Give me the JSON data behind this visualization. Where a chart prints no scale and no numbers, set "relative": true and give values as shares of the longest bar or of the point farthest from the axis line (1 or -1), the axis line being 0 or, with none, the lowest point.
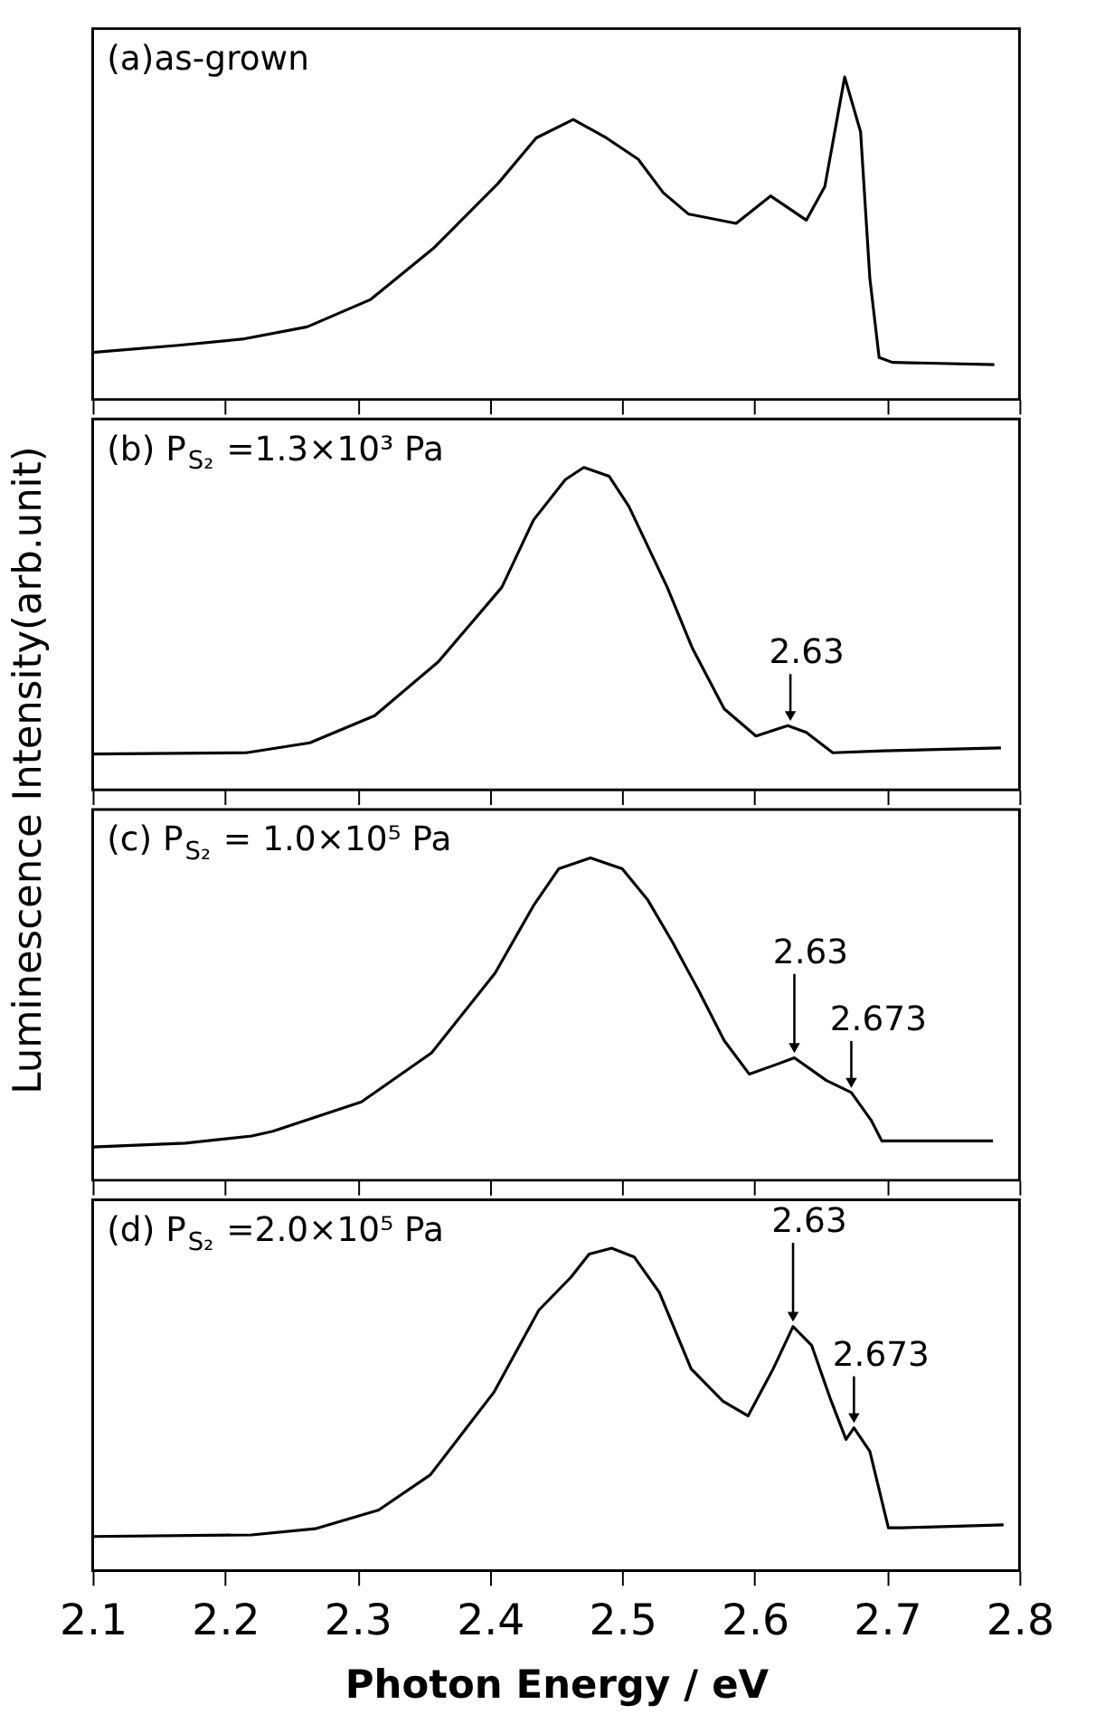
{
  "chart_data": [
    {
      "type": "line",
      "relative": true,
      "ylabel": "Luminescence Intensity(arb.unit)",
      "xlim": [
        2.1,
        2.8
      ],
      "xticks": [
        2.1,
        2.2,
        2.3,
        2.4,
        2.5,
        2.6,
        2.7,
        2.8
      ],
      "tick_labels": false,
      "grid": false,
      "legend": false,
      "marker": "none",
      "line_style": "solid",
      "annotations": [
        "(a)as-grown"
      ],
      "series": [
        {
          "color": "#000000",
          "x": [
            2.1,
            2.165,
            2.213,
            2.262,
            2.31,
            2.358,
            2.406,
            2.435,
            2.463,
            2.488,
            2.512,
            2.531,
            2.55,
            2.586,
            2.612,
            2.639,
            2.653,
            2.668,
            2.68,
            2.687,
            2.694,
            2.704,
            2.781
          ],
          "values": [
            0.146,
            0.168,
            0.187,
            0.225,
            0.31,
            0.471,
            0.669,
            0.811,
            0.868,
            0.811,
            0.745,
            0.641,
            0.575,
            0.546,
            0.631,
            0.556,
            0.66,
            1.0,
            0.83,
            0.376,
            0.13,
            0.115,
            0.108
          ]
        }
      ]
    },
    {
      "type": "line",
      "relative": true,
      "xlim": [
        2.1,
        2.8
      ],
      "xticks": [
        2.1,
        2.2,
        2.3,
        2.4,
        2.5,
        2.6,
        2.7,
        2.8
      ],
      "tick_labels": false,
      "grid": false,
      "legend": false,
      "marker": "none",
      "line_style": "solid",
      "annotations": [
        "(b) P$_{S₂}$ =1.3×10³ Pa",
        {
          "text": "2.63",
          "x": 2.627,
          "y": 0.199
        }
      ],
      "series": [
        {
          "color": "#000000",
          "x": [
            2.1,
            2.216,
            2.264,
            2.313,
            2.361,
            2.409,
            2.433,
            2.457,
            2.471,
            2.49,
            2.505,
            2.534,
            2.553,
            2.577,
            2.601,
            2.625,
            2.639,
            2.659,
            2.697,
            2.786
          ],
          "values": [
            0.111,
            0.115,
            0.146,
            0.23,
            0.397,
            0.628,
            0.837,
            0.962,
            1.0,
            0.973,
            0.879,
            0.628,
            0.439,
            0.251,
            0.167,
            0.199,
            0.178,
            0.115,
            0.121,
            0.13
          ]
        }
      ]
    },
    {
      "type": "line",
      "relative": true,
      "xlim": [
        2.1,
        2.8
      ],
      "xticks": [
        2.1,
        2.2,
        2.3,
        2.4,
        2.5,
        2.6,
        2.7,
        2.8
      ],
      "tick_labels": false,
      "grid": false,
      "legend": false,
      "marker": "none",
      "line_style": "solid",
      "annotations": [
        "(c) P$_{S₂}$ = 1.0×10⁵ Pa",
        {
          "text": "2.63",
          "x": 2.63,
          "y": 0.38
        },
        {
          "text": "2.673",
          "x": 2.673,
          "y": 0.272
        }
      ],
      "series": [
        {
          "color": "#000000",
          "x": [
            2.1,
            2.17,
            2.22,
            2.236,
            2.303,
            2.356,
            2.404,
            2.433,
            2.452,
            2.476,
            2.5,
            2.519,
            2.538,
            2.558,
            2.577,
            2.596,
            2.615,
            2.63,
            2.654,
            2.673,
            2.688,
            2.696,
            2.78
          ],
          "values": [
            0.103,
            0.115,
            0.137,
            0.152,
            0.243,
            0.395,
            0.643,
            0.852,
            0.966,
            1.0,
            0.966,
            0.871,
            0.738,
            0.586,
            0.433,
            0.329,
            0.357,
            0.38,
            0.31,
            0.272,
            0.186,
            0.122,
            0.122
          ]
        }
      ]
    },
    {
      "type": "line",
      "relative": true,
      "xlabel": "Photon Energy  /  eV",
      "xlim": [
        2.1,
        2.8
      ],
      "xticks": [
        2.1,
        2.2,
        2.3,
        2.4,
        2.5,
        2.6,
        2.7,
        2.8
      ],
      "tick_labels": "x",
      "grid": false,
      "legend": false,
      "marker": "none",
      "line_style": "solid",
      "annotations": [
        "(d) P$_{S₂}$ =2.0×10⁵ Pa",
        {
          "text": "2.63",
          "x": 2.629,
          "y": 0.757
        },
        {
          "text": "2.673",
          "x": 2.675,
          "y": 0.443
        }
      ],
      "series": [
        {
          "color": "#000000",
          "x": [
            2.1,
            2.22,
            2.268,
            2.316,
            2.355,
            2.403,
            2.437,
            2.461,
            2.475,
            2.492,
            2.509,
            2.528,
            2.552,
            2.576,
            2.595,
            2.614,
            2.629,
            2.643,
            2.657,
            2.669,
            2.675,
            2.687,
            2.701,
            2.711,
            2.788
          ],
          "values": [
            0.106,
            0.111,
            0.13,
            0.188,
            0.297,
            0.553,
            0.808,
            0.909,
            0.982,
            1.0,
            0.973,
            0.863,
            0.626,
            0.526,
            0.48,
            0.626,
            0.757,
            0.699,
            0.535,
            0.407,
            0.443,
            0.37,
            0.133,
            0.133,
            0.142
          ]
        }
      ]
    }
  ]
}
